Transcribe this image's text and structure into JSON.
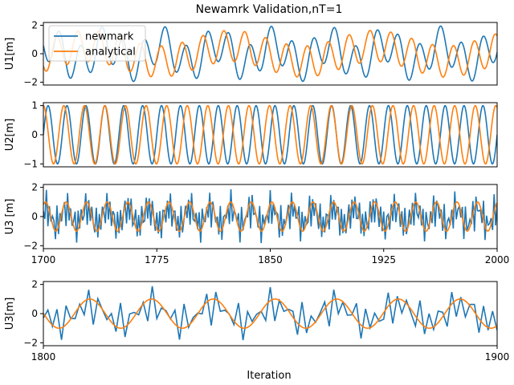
{
  "figure": {
    "title": "Newamrk Validation,nT=1",
    "xlabel": "Iteration"
  },
  "colors": {
    "newmark": "#1f77b4",
    "analytical": "#ff7f0e"
  },
  "legend": {
    "placement": "top-left",
    "entries": [
      "newmark",
      "analytical"
    ]
  },
  "chart_data": [
    {
      "type": "line",
      "ylabel": "U1[m]",
      "xlim": [
        1700,
        2000
      ],
      "ylim": [
        -2.2,
        2.2
      ],
      "yticks": [
        -2,
        0,
        2
      ],
      "xtick_labels_shown": false,
      "series": [
        {
          "name": "newmark",
          "model": "sum-sines",
          "components": [
            {
              "amp": 1.25,
              "period": 14.0,
              "phase": 0.4
            },
            {
              "amp": 0.7,
              "period": 37.0,
              "phase": 1.2
            }
          ]
        },
        {
          "name": "analytical",
          "model": "sum-sines",
          "components": [
            {
              "amp": 1.1,
              "period": 13.8,
              "phase": 2.6
            },
            {
              "amp": 0.55,
              "period": 95.0,
              "phase": 0.3
            }
          ]
        }
      ]
    },
    {
      "type": "line",
      "ylabel": "U2[m]",
      "xlim": [
        1700,
        2000
      ],
      "ylim": [
        -1.1,
        1.1
      ],
      "yticks": [
        -1,
        0,
        1
      ],
      "xtick_labels_shown": false,
      "series": [
        {
          "name": "newmark",
          "model": "sum-sines",
          "components": [
            {
              "amp": 1.0,
              "period": 12.5,
              "phase": 0.0
            }
          ]
        },
        {
          "name": "analytical",
          "model": "sum-sines",
          "components": [
            {
              "amp": 1.0,
              "period": 13.6,
              "phase": 1.6
            }
          ]
        }
      ]
    },
    {
      "type": "line",
      "ylabel": "U3 [m]",
      "xlim": [
        1700,
        2000
      ],
      "ylim": [
        -2.2,
        2.2
      ],
      "yticks": [
        -2,
        0,
        2
      ],
      "xticks": [
        1700,
        1775,
        1850,
        1925,
        2000
      ],
      "series": [
        {
          "name": "newmark",
          "model": "noisy",
          "step": 1,
          "components": [
            {
              "amp": 1.0,
              "period": 2.35,
              "phase": 0.3
            },
            {
              "amp": 0.55,
              "period": 13.6,
              "phase": 0.9
            },
            {
              "amp": 0.35,
              "period": 3.7,
              "phase": 1.7
            }
          ]
        },
        {
          "name": "analytical",
          "model": "sum-sines",
          "components": [
            {
              "amp": 1.0,
              "period": 13.6,
              "phase": 0.9
            }
          ]
        }
      ]
    },
    {
      "type": "line",
      "ylabel": "U3[m]",
      "xlim": [
        1800,
        1900
      ],
      "ylim": [
        -2.2,
        2.2
      ],
      "yticks": [
        -2,
        0,
        2
      ],
      "xticks": [
        1800,
        1900
      ],
      "series": [
        {
          "name": "newmark",
          "model": "noisy",
          "step": 1,
          "components": [
            {
              "amp": 1.0,
              "period": 2.35,
              "phase": 0.3
            },
            {
              "amp": 0.55,
              "period": 13.6,
              "phase": 0.9
            },
            {
              "amp": 0.35,
              "period": 3.7,
              "phase": 1.7
            }
          ]
        },
        {
          "name": "analytical",
          "model": "sum-sines",
          "components": [
            {
              "amp": 1.0,
              "period": 13.6,
              "phase": 0.9
            }
          ]
        }
      ]
    }
  ]
}
